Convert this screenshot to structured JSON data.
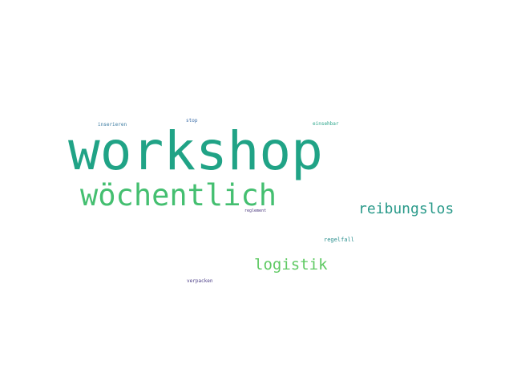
{
  "wordcloud": {
    "background": "#ffffff",
    "words": [
      {
        "text": "workshop",
        "color": "#20a386"
      },
      {
        "text": "wöchentlich",
        "color": "#44bf70"
      },
      {
        "text": "reibungslos",
        "color": "#2a9a8a"
      },
      {
        "text": "logistik",
        "color": "#5ec962"
      },
      {
        "text": "inserieren",
        "color": "#3a7aa0"
      },
      {
        "text": "stop",
        "color": "#3b6da8"
      },
      {
        "text": "einsehbar",
        "color": "#2aa58a"
      },
      {
        "text": "reglement",
        "color": "#45327a"
      },
      {
        "text": "regelfall",
        "color": "#2a8f8e"
      },
      {
        "text": "verpacken",
        "color": "#4a3c86"
      }
    ]
  }
}
